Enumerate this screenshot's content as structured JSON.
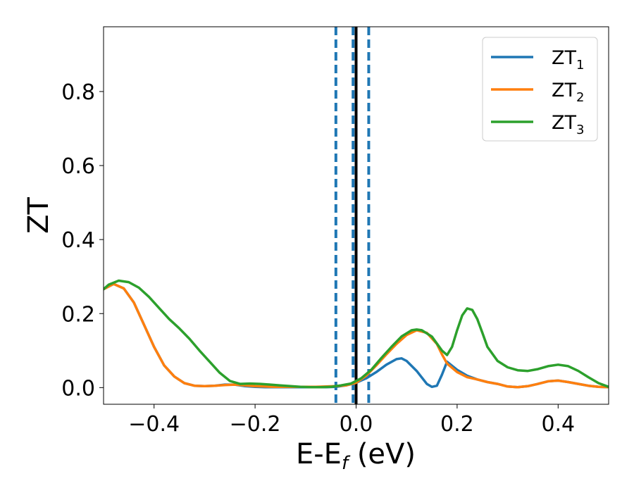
{
  "chart_data": {
    "type": "line",
    "xlabel": "E-E",
    "xlabel_sub": "f",
    "xlabel_unit": " (eV)",
    "ylabel": "ZT",
    "xlim": [
      -0.5,
      0.5
    ],
    "ylim": [
      -0.045,
      0.975
    ],
    "x_ticks": [
      -0.4,
      -0.2,
      0.0,
      0.2,
      0.4
    ],
    "x_tick_labels": [
      "−0.4",
      "−0.2",
      "0.0",
      "0.2",
      "0.4"
    ],
    "y_ticks": [
      0.0,
      0.2,
      0.4,
      0.6,
      0.8
    ],
    "y_tick_labels": [
      "0.0",
      "0.2",
      "0.4",
      "0.6",
      "0.8"
    ],
    "grid": false,
    "legend_position": "top-right",
    "vlines": [
      {
        "x": -0.04,
        "style": "dashed",
        "color": "#1f77b4"
      },
      {
        "x": -0.006,
        "style": "dashed",
        "color": "#1f77b4"
      },
      {
        "x": 0.0,
        "style": "solid",
        "color": "#000000"
      },
      {
        "x": 0.025,
        "style": "dashed",
        "color": "#1f77b4"
      }
    ],
    "series": [
      {
        "name": "ZT",
        "sub": "1",
        "color": "#1f77b4",
        "points": [
          [
            -0.5,
            0.266
          ],
          [
            -0.48,
            0.28
          ],
          [
            -0.46,
            0.268
          ],
          [
            -0.44,
            0.23
          ],
          [
            -0.42,
            0.17
          ],
          [
            -0.4,
            0.11
          ],
          [
            -0.38,
            0.06
          ],
          [
            -0.36,
            0.03
          ],
          [
            -0.34,
            0.012
          ],
          [
            -0.32,
            0.005
          ],
          [
            -0.3,
            0.004
          ],
          [
            -0.28,
            0.005
          ],
          [
            -0.26,
            0.008
          ],
          [
            -0.24,
            0.008
          ],
          [
            -0.22,
            0.004
          ],
          [
            -0.2,
            0.002
          ],
          [
            -0.18,
            0.001
          ],
          [
            -0.16,
            0.001
          ],
          [
            -0.14,
            0.001
          ],
          [
            -0.12,
            0.001
          ],
          [
            -0.1,
            0.001
          ],
          [
            -0.08,
            0.001
          ],
          [
            -0.06,
            0.001
          ],
          [
            -0.04,
            0.002
          ],
          [
            -0.02,
            0.006
          ],
          [
            0.0,
            0.013
          ],
          [
            0.02,
            0.025
          ],
          [
            0.04,
            0.042
          ],
          [
            0.06,
            0.062
          ],
          [
            0.08,
            0.077
          ],
          [
            0.09,
            0.079
          ],
          [
            0.1,
            0.072
          ],
          [
            0.12,
            0.045
          ],
          [
            0.14,
            0.01
          ],
          [
            0.15,
            0.002
          ],
          [
            0.16,
            0.005
          ],
          [
            0.17,
            0.035
          ],
          [
            0.18,
            0.07
          ],
          [
            0.2,
            0.048
          ],
          [
            0.22,
            0.032
          ],
          [
            0.24,
            0.022
          ],
          [
            0.26,
            0.015
          ],
          [
            0.28,
            0.01
          ],
          [
            0.3,
            0.003
          ],
          [
            0.32,
            0.001
          ],
          [
            0.34,
            0.004
          ],
          [
            0.36,
            0.01
          ],
          [
            0.38,
            0.017
          ],
          [
            0.4,
            0.019
          ],
          [
            0.42,
            0.015
          ],
          [
            0.44,
            0.01
          ],
          [
            0.46,
            0.005
          ],
          [
            0.48,
            0.002
          ],
          [
            0.5,
            0.001
          ]
        ]
      },
      {
        "name": "ZT",
        "sub": "2",
        "color": "#ff7f0e",
        "points": [
          [
            -0.5,
            0.266
          ],
          [
            -0.48,
            0.28
          ],
          [
            -0.46,
            0.268
          ],
          [
            -0.44,
            0.23
          ],
          [
            -0.42,
            0.17
          ],
          [
            -0.4,
            0.11
          ],
          [
            -0.38,
            0.06
          ],
          [
            -0.36,
            0.03
          ],
          [
            -0.34,
            0.012
          ],
          [
            -0.32,
            0.005
          ],
          [
            -0.3,
            0.004
          ],
          [
            -0.28,
            0.005
          ],
          [
            -0.26,
            0.007
          ],
          [
            -0.24,
            0.008
          ],
          [
            -0.22,
            0.006
          ],
          [
            -0.2,
            0.004
          ],
          [
            -0.18,
            0.003
          ],
          [
            -0.16,
            0.002
          ],
          [
            -0.14,
            0.002
          ],
          [
            -0.12,
            0.002
          ],
          [
            -0.1,
            0.002
          ],
          [
            -0.08,
            0.002
          ],
          [
            -0.06,
            0.003
          ],
          [
            -0.04,
            0.004
          ],
          [
            -0.02,
            0.006
          ],
          [
            0.0,
            0.013
          ],
          [
            0.02,
            0.032
          ],
          [
            0.04,
            0.06
          ],
          [
            0.06,
            0.09
          ],
          [
            0.08,
            0.118
          ],
          [
            0.1,
            0.142
          ],
          [
            0.12,
            0.155
          ],
          [
            0.14,
            0.148
          ],
          [
            0.16,
            0.118
          ],
          [
            0.17,
            0.09
          ],
          [
            0.18,
            0.065
          ],
          [
            0.2,
            0.042
          ],
          [
            0.22,
            0.028
          ],
          [
            0.24,
            0.022
          ],
          [
            0.26,
            0.015
          ],
          [
            0.28,
            0.01
          ],
          [
            0.3,
            0.003
          ],
          [
            0.32,
            0.001
          ],
          [
            0.34,
            0.004
          ],
          [
            0.36,
            0.01
          ],
          [
            0.38,
            0.017
          ],
          [
            0.4,
            0.019
          ],
          [
            0.42,
            0.015
          ],
          [
            0.44,
            0.01
          ],
          [
            0.46,
            0.005
          ],
          [
            0.48,
            0.002
          ],
          [
            0.5,
            0.001
          ]
        ]
      },
      {
        "name": "ZT",
        "sub": "3",
        "color": "#2ca02c",
        "points": [
          [
            -0.5,
            0.266
          ],
          [
            -0.49,
            0.278
          ],
          [
            -0.47,
            0.289
          ],
          [
            -0.45,
            0.285
          ],
          [
            -0.43,
            0.27
          ],
          [
            -0.41,
            0.245
          ],
          [
            -0.39,
            0.215
          ],
          [
            -0.37,
            0.185
          ],
          [
            -0.35,
            0.16
          ],
          [
            -0.33,
            0.132
          ],
          [
            -0.31,
            0.1
          ],
          [
            -0.29,
            0.07
          ],
          [
            -0.27,
            0.04
          ],
          [
            -0.25,
            0.018
          ],
          [
            -0.23,
            0.01
          ],
          [
            -0.21,
            0.011
          ],
          [
            -0.19,
            0.01
          ],
          [
            -0.17,
            0.008
          ],
          [
            -0.15,
            0.006
          ],
          [
            -0.13,
            0.004
          ],
          [
            -0.11,
            0.002
          ],
          [
            -0.09,
            0.001
          ],
          [
            -0.07,
            0.001
          ],
          [
            -0.05,
            0.002
          ],
          [
            -0.03,
            0.006
          ],
          [
            -0.01,
            0.011
          ],
          [
            0.01,
            0.025
          ],
          [
            0.03,
            0.048
          ],
          [
            0.05,
            0.08
          ],
          [
            0.07,
            0.11
          ],
          [
            0.09,
            0.138
          ],
          [
            0.11,
            0.155
          ],
          [
            0.12,
            0.157
          ],
          [
            0.13,
            0.155
          ],
          [
            0.15,
            0.138
          ],
          [
            0.17,
            0.1
          ],
          [
            0.18,
            0.088
          ],
          [
            0.19,
            0.11
          ],
          [
            0.2,
            0.155
          ],
          [
            0.21,
            0.195
          ],
          [
            0.22,
            0.214
          ],
          [
            0.23,
            0.21
          ],
          [
            0.24,
            0.185
          ],
          [
            0.25,
            0.148
          ],
          [
            0.26,
            0.11
          ],
          [
            0.28,
            0.072
          ],
          [
            0.3,
            0.055
          ],
          [
            0.32,
            0.047
          ],
          [
            0.34,
            0.045
          ],
          [
            0.36,
            0.05
          ],
          [
            0.38,
            0.058
          ],
          [
            0.4,
            0.062
          ],
          [
            0.42,
            0.058
          ],
          [
            0.44,
            0.045
          ],
          [
            0.46,
            0.028
          ],
          [
            0.48,
            0.012
          ],
          [
            0.5,
            0.002
          ]
        ]
      }
    ]
  }
}
